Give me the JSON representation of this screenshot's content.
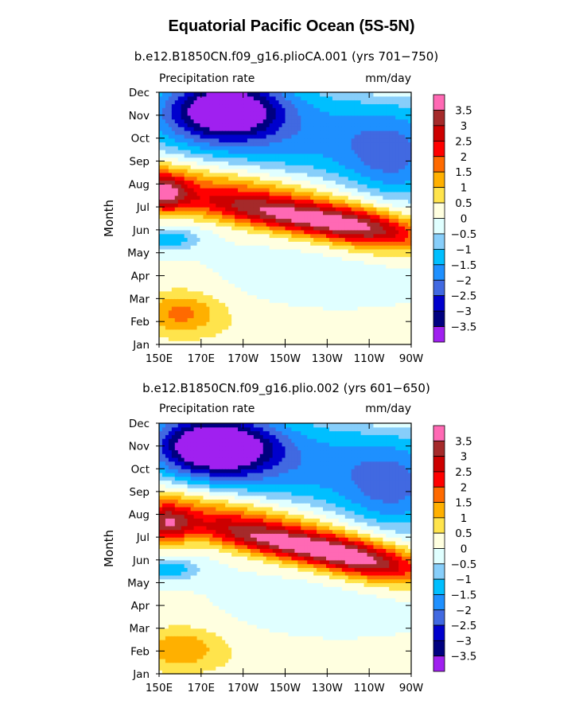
{
  "title": "Equatorial Pacific Ocean (5S-5N)",
  "colors": {
    "levels": [
      "#a020f0",
      "#000080",
      "#0000cd",
      "#4169e1",
      "#1e90ff",
      "#00bfff",
      "#87cefa",
      "#e0ffff",
      "#ffffe0",
      "#ffe44c",
      "#ffb000",
      "#ff6a00",
      "#ff0000",
      "#cd0000",
      "#a52a2a",
      "#ff69b4"
    ],
    "ocean_mid": "#00bfff"
  },
  "chart_data": [
    {
      "type": "heatmap",
      "title": "b.e12.B1850CN.f09_g16.plioCA.001 (yrs 701−750)",
      "left_label": "Precipitation rate",
      "right_label": "mm/day",
      "ylabel": "Month",
      "x_ticks": [
        "150E",
        "170E",
        "170W",
        "150W",
        "130W",
        "110W",
        "90W"
      ],
      "y_ticks": [
        "Jan",
        "Feb",
        "Mar",
        "Apr",
        "May",
        "Jun",
        "Jul",
        "Aug",
        "Sep",
        "Oct",
        "Nov",
        "Dec"
      ],
      "xlim": [
        150,
        270
      ],
      "colorbar_labels": [
        "3.5",
        "3",
        "2.5",
        "2",
        "1.5",
        "1",
        "0.5",
        "0",
        "−0.5",
        "−1",
        "−1.5",
        "−2",
        "−2.5",
        "−3",
        "−3.5"
      ],
      "features": {
        "neg_core": {
          "lon": 185,
          "month": 10.3,
          "lon_width": 55,
          "month_width": 1.3,
          "amp": -3.2
        },
        "pos_band": {
          "amp": 3.2,
          "west_lon": 185,
          "east_lon": 255,
          "west_month": 6.0,
          "east_month": 5.0
        },
        "west_peak": {
          "lon": 152,
          "month": 6.6,
          "amp": 2.6
        },
        "feb_warm": {
          "lon": 160,
          "month": 1.4,
          "amp": 1.4
        }
      }
    },
    {
      "type": "heatmap",
      "title": "b.e12.B1850CN.f09_g16.plio.002 (yrs 601−650)",
      "left_label": "Precipitation rate",
      "right_label": "mm/day",
      "ylabel": "Month",
      "x_ticks": [
        "150E",
        "170E",
        "170W",
        "150W",
        "130W",
        "110W",
        "90W"
      ],
      "y_ticks": [
        "Jan",
        "Feb",
        "Mar",
        "Apr",
        "May",
        "Jun",
        "Jul",
        "Aug",
        "Sep",
        "Oct",
        "Nov",
        "Dec"
      ],
      "xlim": [
        150,
        270
      ],
      "colorbar_labels": [
        "3.5",
        "3",
        "2.5",
        "2",
        "1.5",
        "1",
        "0.5",
        "0",
        "−0.5",
        "−1",
        "−1.5",
        "−2",
        "−2.5",
        "−3",
        "−3.5"
      ],
      "features": {
        "neg_core": {
          "lon": 180,
          "month": 10.0,
          "lon_width": 60,
          "month_width": 1.3,
          "amp": -3.3
        },
        "pos_band": {
          "amp": 3.4,
          "west_lon": 185,
          "east_lon": 250,
          "west_month": 6.2,
          "east_month": 5.0
        },
        "west_peak": {
          "lon": 153,
          "month": 6.5,
          "amp": 2.5
        },
        "feb_warm": {
          "lon": 160,
          "month": 1.1,
          "amp": 1.2
        }
      }
    }
  ]
}
